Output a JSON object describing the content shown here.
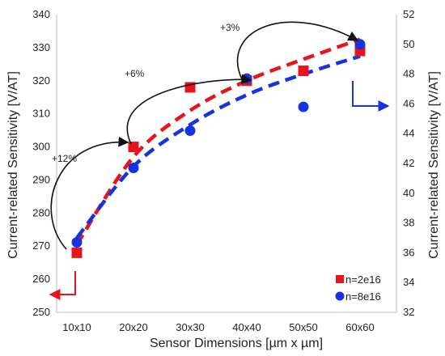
{
  "chart_data": {
    "type": "scatter",
    "categories": [
      "10x10",
      "20x20",
      "30x30",
      "40x40",
      "50x50",
      "60x60"
    ],
    "xlabel": "Sensor Dimensions [µm x µm]",
    "ylabel_left": "Current-related Sensitivity [V/AT]",
    "ylabel_right": "Current-related Sensitivity [V/AT]",
    "ylim_left": [
      250,
      340
    ],
    "ylim_right": [
      32,
      52
    ],
    "yticks_left": [
      250,
      260,
      270,
      280,
      290,
      300,
      310,
      320,
      330,
      340
    ],
    "yticks_right": [
      32,
      34,
      36,
      38,
      40,
      42,
      44,
      46,
      48,
      50,
      52
    ],
    "grid": false,
    "legend_position": "bottom-right",
    "series": [
      {
        "name": "n=2e16",
        "axis": "left",
        "marker": "square",
        "color": "#e8141b",
        "values": [
          268,
          300,
          318,
          320,
          323,
          329
        ],
        "trend": [
          270.5,
          297,
          311,
          320,
          326.5,
          332.5
        ]
      },
      {
        "name": "n=8e16",
        "axis": "right",
        "marker": "circle",
        "color": "#1733e0",
        "values": [
          36.7,
          41.7,
          44.2,
          47.7,
          45.8,
          50.0
        ],
        "trend": [
          37.0,
          41.8,
          44.6,
          46.6,
          48.0,
          49.2
        ]
      }
    ],
    "annotations": [
      "+12%",
      "+6%",
      "+3%"
    ]
  }
}
